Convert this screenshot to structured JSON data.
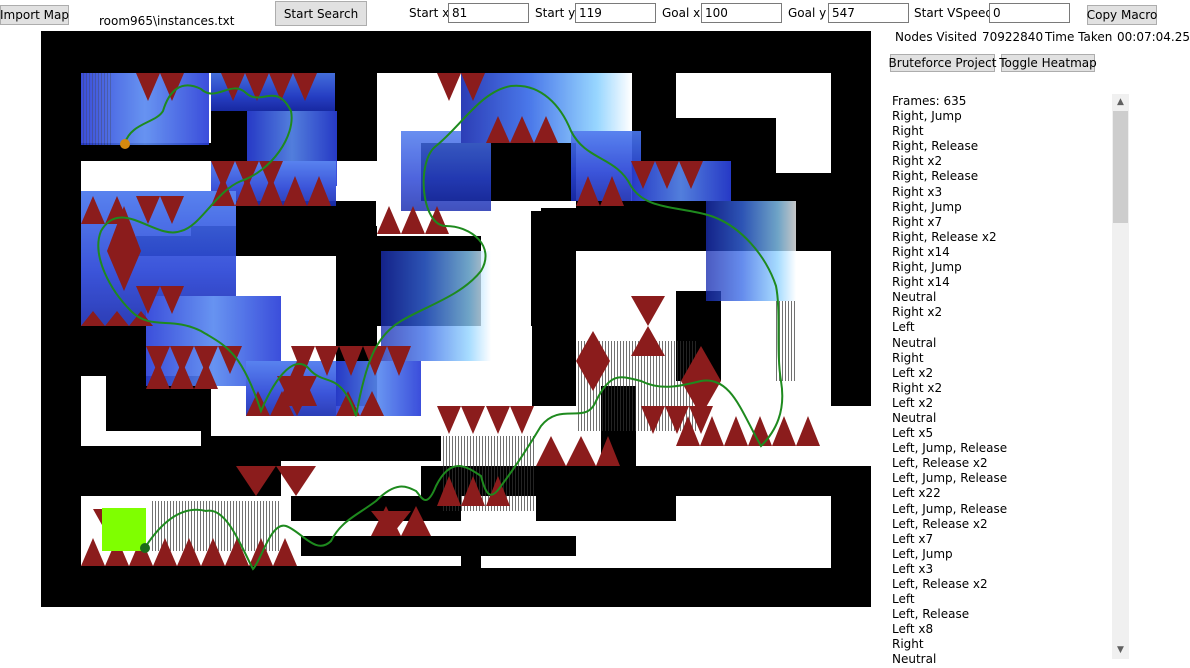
{
  "toolbar": {
    "import_label": "Import Map",
    "file_name": "room965\\instances.txt",
    "start_search_label": "Start Search",
    "start_x_label": "Start x",
    "start_x_value": "81",
    "start_y_label": "Start y",
    "start_y_value": "119",
    "goal_x_label": "Goal x",
    "goal_x_value": "100",
    "goal_y_label": "Goal y",
    "goal_y_value": "547",
    "start_vspeed_label": "Start VSpeed",
    "start_vspeed_value": "0",
    "copy_macro_label": "Copy Macro"
  },
  "stats": {
    "nodes_label": "Nodes Visited",
    "nodes_value": "70922840",
    "time_label": "Time Taken",
    "time_value": "00:07:04.25"
  },
  "actions": {
    "bruteforce_label": "Bruteforce Project",
    "heatmap_label": "Toggle Heatmap"
  },
  "colors": {
    "wall": "#000000",
    "floor": "#ffffff",
    "spike": "#8b1c1c",
    "path": "#1e8a1e",
    "goal": "#7fff00",
    "start_marker": "#d4890f",
    "end_marker": "#1a6b1a",
    "heat_low": "#3050e0",
    "heat_high": "#90d8ff"
  },
  "macro": {
    "lines": [
      "Frames: 635",
      "Right, Jump",
      "Right",
      "Right, Release",
      "Right x2",
      "Right, Release",
      "Right x3",
      "Right, Jump",
      "Right x7",
      "Right, Release x2",
      "Right x14",
      "Right, Jump",
      "Right x14",
      "Neutral",
      "Right x2",
      "Left",
      "Neutral",
      "Right",
      "Left x2",
      "Right x2",
      "Left x2",
      "Neutral",
      "Left x5",
      "Left, Jump, Release",
      "Left, Release x2",
      "Left, Jump, Release",
      "Left x22",
      "Left, Jump, Release",
      "Left, Release x2",
      "Left x7",
      "Left, Jump",
      "Left x3",
      "Left, Release x2",
      "Left",
      "Left, Release",
      "Left x8",
      "Right",
      "Neutral"
    ]
  }
}
